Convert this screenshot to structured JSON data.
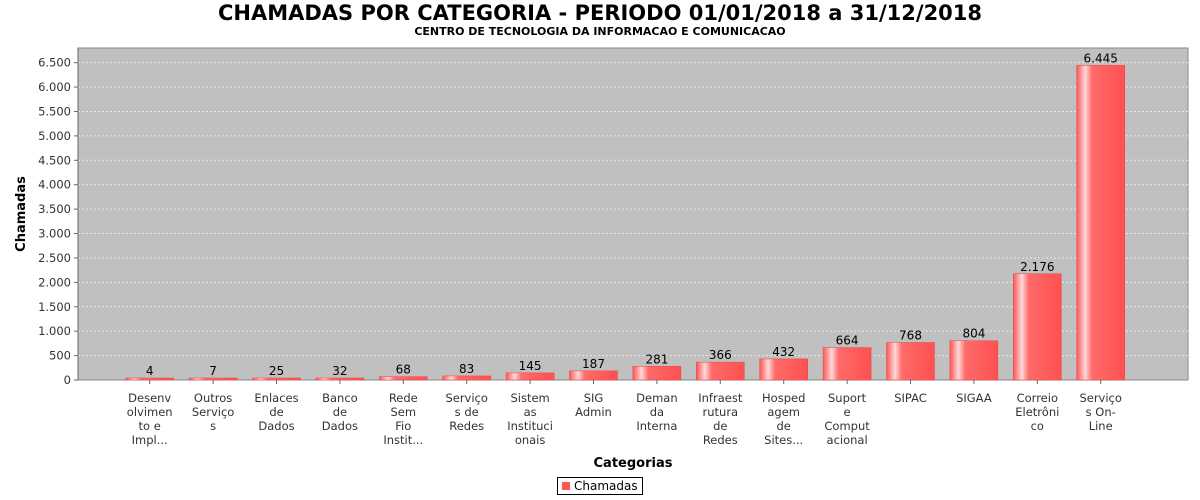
{
  "chart_data": {
    "type": "bar",
    "title": "CHAMADAS POR CATEGORIA - PERIODO 01/01/2018 a 31/12/2018",
    "subtitle": "CENTRO DE TECNOLOGIA DA INFORMACAO E COMUNICACAO",
    "xlabel": "Categorias",
    "ylabel": "Chamadas",
    "ylim": [
      0,
      6800
    ],
    "yticks": [
      0,
      500,
      1000,
      1500,
      2000,
      2500,
      3000,
      3500,
      4000,
      4500,
      5000,
      5500,
      6000,
      6500
    ],
    "ytick_labels": [
      "0",
      "500",
      "1.000",
      "1.500",
      "2.000",
      "2.500",
      "3.000",
      "3.500",
      "4.000",
      "4.500",
      "5.000",
      "5.500",
      "6.000",
      "6.500"
    ],
    "grid": true,
    "legend_position": "bottom-center",
    "colors": {
      "bar": "#ff5555",
      "bar_highlight": "#ffd0d0",
      "plot_background": "#c0c0c0",
      "grid": "#e8e8e8"
    },
    "categories": [
      [
        "Desenv",
        "olvimen",
        "to e",
        "Impl..."
      ],
      [
        "Outros",
        "Serviço",
        "s"
      ],
      [
        "Enlaces",
        "de",
        "Dados"
      ],
      [
        "Banco",
        "de",
        "Dados"
      ],
      [
        "Rede",
        "Sem",
        "Fio",
        "Instit..."
      ],
      [
        "Serviço",
        "s de",
        "Redes"
      ],
      [
        "Sistem",
        "as",
        "Instituci",
        "onais"
      ],
      [
        "SIG",
        "Admin"
      ],
      [
        "Deman",
        "da",
        "Interna"
      ],
      [
        "Infraest",
        "rutura",
        "de",
        "Redes"
      ],
      [
        "Hosped",
        "agem",
        "de",
        "Sites..."
      ],
      [
        "Suport",
        "e",
        "Comput",
        "acional"
      ],
      [
        "SIPAC"
      ],
      [
        "SIGAA"
      ],
      [
        "Correio",
        "Eletrôni",
        "co"
      ],
      [
        "Serviço",
        "s On-",
        "Line"
      ]
    ],
    "series": [
      {
        "name": "Chamadas",
        "values": [
          4,
          7,
          25,
          32,
          68,
          83,
          145,
          187,
          281,
          366,
          432,
          664,
          768,
          804,
          2176,
          6445
        ],
        "labels": [
          "4",
          "7",
          "25",
          "32",
          "68",
          "83",
          "145",
          "187",
          "281",
          "366",
          "432",
          "664",
          "768",
          "804",
          "2.176",
          "6.445"
        ]
      }
    ]
  }
}
